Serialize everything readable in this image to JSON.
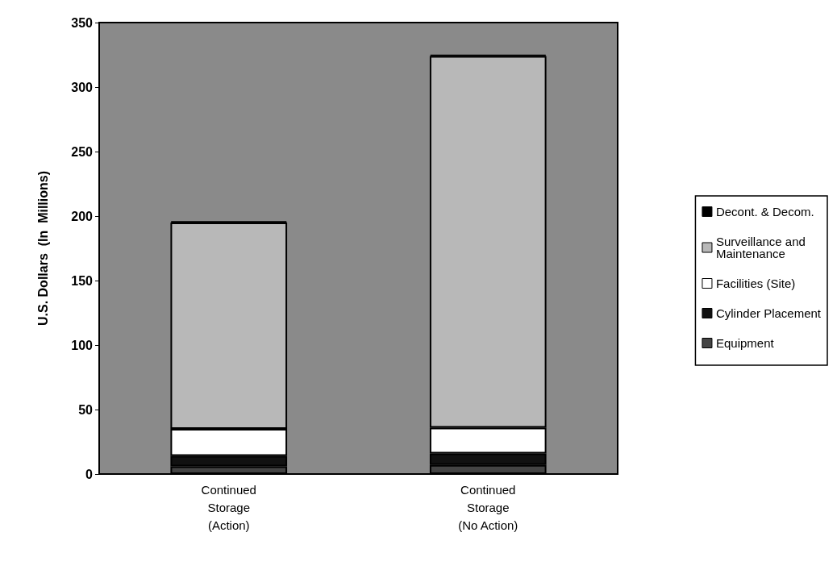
{
  "chart_data": {
    "type": "bar",
    "stacked": true,
    "ylabel": "U.S. Dollars  (In  Millions)",
    "categories": [
      "Continued\nStorage\n(Action)",
      "Continued\nStorage\n(No Action)"
    ],
    "ylim": [
      0,
      350
    ],
    "yticks": [
      0,
      50,
      100,
      150,
      200,
      250,
      300,
      350
    ],
    "grid": false,
    "legend": "right",
    "series": [
      {
        "name": "Equipment",
        "color": "#444444",
        "values": [
          6,
          7
        ]
      },
      {
        "name": "Cylinder Placement",
        "color": "#111111",
        "values": [
          8,
          9
        ]
      },
      {
        "name": "Facilities (Site)",
        "color": "#ffffff",
        "values": [
          21,
          20
        ]
      },
      {
        "name": "Surveillance and\nMaintenance",
        "color": "#b8b8b8",
        "values": [
          160,
          288
        ]
      },
      {
        "name": "Decont. & Decom.",
        "color": "#000000",
        "values": [
          1,
          1
        ]
      }
    ]
  }
}
